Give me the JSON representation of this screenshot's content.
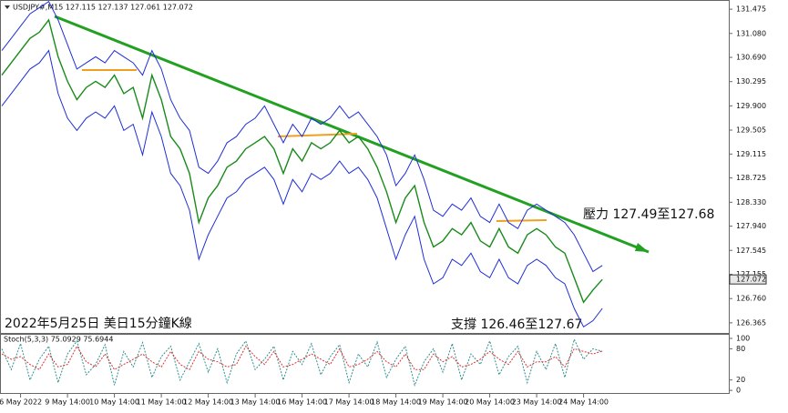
{
  "chart_data": [
    {
      "type": "line",
      "header": "USDJPY#,M15 127.115 127.137 127.061 127.072",
      "annotations": [
        "壓力 127.49至127.68",
        "支撐 126.46至127.67",
        "2022年5月25日 美日15分鐘K線"
      ],
      "last_price": 127.072,
      "categories": [
        null,
        null,
        "6 May 2022",
        null,
        null,
        null,
        null,
        "9 May 14:00",
        null,
        null,
        null,
        null,
        "10 May 14:00",
        null,
        null,
        null,
        null,
        "11 May 14:00",
        null,
        null,
        null,
        null,
        "12 May 14:00",
        null,
        null,
        null,
        null,
        "13 May 14:00",
        null,
        null,
        null,
        null,
        "16 May 14:00",
        null,
        null,
        null,
        null,
        "17 May 14:00",
        null,
        null,
        null,
        null,
        "18 May 14:00",
        null,
        null,
        null,
        null,
        "19 May 14:00",
        null,
        null,
        null,
        null,
        "20 May 14:00",
        null,
        null,
        null,
        null,
        "23 May 14:00",
        null,
        null,
        null,
        null,
        "24 May 14:00",
        null,
        null
      ],
      "series": [
        {
          "color": "#1a8a1a",
          "values": [
            130.4,
            130.6,
            130.8,
            131.0,
            131.1,
            131.3,
            130.7,
            130.3,
            130.0,
            130.2,
            130.3,
            130.2,
            130.4,
            130.1,
            130.2,
            129.7,
            130.4,
            130.0,
            129.4,
            129.2,
            128.8,
            128.0,
            128.4,
            128.6,
            128.9,
            129.0,
            129.2,
            129.3,
            129.4,
            129.2,
            128.8,
            129.2,
            129.0,
            129.3,
            129.2,
            129.3,
            129.5,
            129.3,
            129.4,
            129.2,
            128.9,
            128.5,
            128.0,
            128.4,
            128.6,
            128.0,
            127.6,
            127.7,
            127.9,
            127.8,
            128.0,
            127.7,
            127.6,
            127.9,
            127.6,
            127.5,
            127.8,
            127.9,
            127.8,
            127.6,
            127.5,
            127.1,
            126.7,
            126.9,
            127.072
          ]
        },
        {
          "color": "#1f2fd6",
          "values": [
            130.8,
            131.0,
            131.2,
            131.4,
            131.5,
            131.6,
            131.3,
            130.9,
            130.5,
            130.6,
            130.7,
            130.6,
            130.8,
            130.7,
            130.6,
            130.4,
            130.8,
            130.5,
            130.0,
            129.7,
            129.5,
            128.9,
            128.8,
            129.0,
            129.3,
            129.4,
            129.6,
            129.7,
            129.9,
            129.6,
            129.3,
            129.6,
            129.4,
            129.7,
            129.6,
            129.7,
            129.9,
            129.7,
            129.8,
            129.6,
            129.4,
            129.1,
            128.6,
            128.8,
            129.1,
            128.7,
            128.2,
            128.1,
            128.3,
            128.2,
            128.4,
            128.1,
            128.0,
            128.3,
            128.0,
            127.9,
            128.2,
            128.3,
            128.2,
            128.1,
            128.0,
            127.8,
            127.5,
            127.2,
            127.3
          ]
        },
        {
          "color": "#1f2fd6",
          "values": [
            129.9,
            130.1,
            130.3,
            130.5,
            130.6,
            130.8,
            130.1,
            129.7,
            129.5,
            129.7,
            129.8,
            129.7,
            129.9,
            129.5,
            129.6,
            129.1,
            129.8,
            129.4,
            128.8,
            128.6,
            128.2,
            127.4,
            127.8,
            128.1,
            128.4,
            128.5,
            128.7,
            128.8,
            128.9,
            128.7,
            128.3,
            128.7,
            128.5,
            128.8,
            128.7,
            128.8,
            129.0,
            128.8,
            128.9,
            128.7,
            128.4,
            127.9,
            127.4,
            127.8,
            128.1,
            127.4,
            127.0,
            127.1,
            127.4,
            127.3,
            127.5,
            127.2,
            127.1,
            127.4,
            127.1,
            127.0,
            127.3,
            127.4,
            127.3,
            127.1,
            127.0,
            126.6,
            126.3,
            126.4,
            126.6
          ]
        }
      ],
      "ylim": [
        126.2,
        131.61
      ],
      "yticks": [
        131.475,
        {
          "value": 131.08,
          "label": "131.080"
        },
        {
          "value": 130.69,
          "label": "130.690"
        },
        130.295,
        {
          "value": 129.9,
          "label": "129.900"
        },
        129.505,
        129.115,
        128.725,
        {
          "value": 128.33,
          "label": "128.330"
        },
        {
          "value": 127.94,
          "label": "127.940"
        },
        127.545,
        127.155,
        {
          "value": 126.76,
          "label": "126.760"
        },
        126.365
      ]
    },
    {
      "type": "line",
      "header": "Stoch(5,3,3) 75.0929 75.6944",
      "series": [
        {
          "color": "#2f8f8f",
          "values": [
            80,
            40,
            90,
            20,
            60,
            85,
            15,
            70,
            95,
            30,
            50,
            88,
            10,
            75,
            45,
            92,
            25,
            65,
            85,
            20,
            55,
            90,
            35,
            80,
            15,
            70,
            95,
            40,
            60,
            85,
            20,
            75,
            50,
            90,
            30,
            65,
            88,
            15,
            70,
            45,
            93,
            25,
            60,
            85,
            10,
            55,
            80,
            35,
            90,
            20,
            70,
            50,
            95,
            30,
            65,
            85,
            15,
            75,
            40,
            90,
            25,
            98,
            60,
            80,
            75.0929
          ]
        },
        {
          "color": "#e03030",
          "values": [
            70,
            60,
            65,
            50,
            40,
            70,
            45,
            50,
            85,
            55,
            45,
            70,
            40,
            50,
            60,
            70,
            55,
            45,
            75,
            50,
            40,
            75,
            60,
            55,
            45,
            50,
            85,
            65,
            50,
            75,
            45,
            50,
            60,
            70,
            60,
            50,
            80,
            45,
            50,
            60,
            75,
            55,
            45,
            70,
            40,
            40,
            70,
            55,
            65,
            45,
            50,
            60,
            75,
            60,
            50,
            75,
            45,
            55,
            55,
            65,
            45,
            80,
            75,
            70,
            75.6944
          ]
        }
      ],
      "ylim": [
        -5,
        107
      ],
      "yticks": [
        100,
        80,
        20,
        0
      ]
    }
  ]
}
